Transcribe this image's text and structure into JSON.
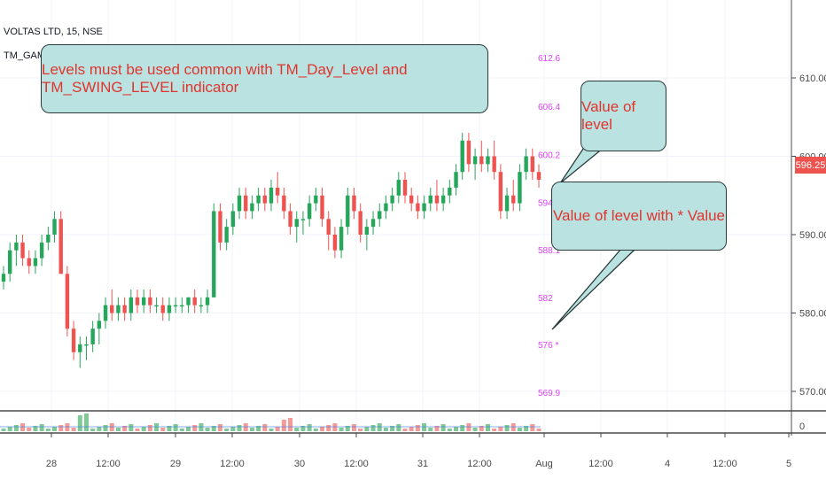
{
  "header": {
    "symbol": "VOLTAS LTD, 15, NSE",
    "indicator": "TM_GAME_LEVEL"
  },
  "callouts": {
    "main": "Levels must be used common with TM_Day_Level and TM_SWING_LEVEL indicator",
    "level": "Value of level",
    "level_star": "Value of level with * Value"
  },
  "current_price": "596.25",
  "colors": {
    "up": "#26a65b",
    "down": "#ef5350",
    "level_label": "#e040fb",
    "callout_bg": "#b9e2e0",
    "callout_text": "#e0352f"
  },
  "chart_data": {
    "type": "candlestick",
    "symbol": "VOLTAS LTD",
    "interval": "15",
    "exchange": "NSE",
    "y_axis": {
      "ticks": [
        "610.00",
        "600.00",
        "590.00",
        "580.00",
        "570.00"
      ],
      "range": [
        566,
        616
      ]
    },
    "x_axis": {
      "ticks": [
        "28",
        "12:00",
        "29",
        "12:00",
        "30",
        "12:00",
        "31",
        "12:00",
        "Aug",
        "12:00",
        "4",
        "12:00",
        "5"
      ]
    },
    "level_labels": [
      "612.6",
      "606.4",
      "600.2",
      "594.1",
      "588.1",
      "582",
      "576 *",
      "569.9"
    ],
    "candles": [
      [
        584,
        586,
        583,
        585
      ],
      [
        585,
        589,
        584,
        588
      ],
      [
        588,
        590,
        586,
        589
      ],
      [
        589,
        590,
        586,
        587
      ],
      [
        587,
        588,
        585,
        586
      ],
      [
        586,
        588,
        585,
        587
      ],
      [
        587,
        590,
        586,
        589
      ],
      [
        589,
        591,
        588,
        590
      ],
      [
        590,
        593,
        589,
        592
      ],
      [
        592,
        593,
        585,
        585
      ],
      [
        585,
        586,
        577,
        578
      ],
      [
        578,
        579,
        574,
        575
      ],
      [
        575,
        577,
        573,
        576
      ],
      [
        576,
        577,
        574,
        576
      ],
      [
        576,
        579,
        575,
        578
      ],
      [
        578,
        580,
        576,
        579
      ],
      [
        579,
        582,
        578,
        581
      ],
      [
        581,
        583,
        579,
        580
      ],
      [
        580,
        582,
        579,
        581
      ],
      [
        581,
        582,
        579,
        580
      ],
      [
        580,
        583,
        579,
        582
      ],
      [
        582,
        583,
        580,
        581
      ],
      [
        581,
        583,
        580,
        582
      ],
      [
        582,
        583,
        580,
        581
      ],
      [
        581,
        582,
        580,
        581
      ],
      [
        581,
        582,
        579,
        580
      ],
      [
        580,
        582,
        579,
        581
      ],
      [
        581,
        582,
        580,
        581
      ],
      [
        581,
        582,
        580,
        581
      ],
      [
        581,
        582,
        580,
        582
      ],
      [
        582,
        583,
        580,
        581
      ],
      [
        581,
        582,
        580,
        581
      ],
      [
        581,
        583,
        580,
        582
      ],
      [
        582,
        594,
        582,
        593
      ],
      [
        593,
        594,
        588,
        589
      ],
      [
        589,
        592,
        588,
        591
      ],
      [
        591,
        594,
        590,
        593
      ],
      [
        593,
        596,
        592,
        595
      ],
      [
        595,
        596,
        592,
        593
      ],
      [
        593,
        595,
        592,
        594
      ],
      [
        594,
        596,
        593,
        595
      ],
      [
        595,
        596,
        593,
        594
      ],
      [
        594,
        597,
        593,
        596
      ],
      [
        596,
        598,
        594,
        595
      ],
      [
        595,
        596,
        592,
        593
      ],
      [
        593,
        594,
        590,
        591
      ],
      [
        591,
        593,
        589,
        592
      ],
      [
        592,
        593,
        590,
        592
      ],
      [
        592,
        595,
        591,
        594
      ],
      [
        594,
        596,
        593,
        595
      ],
      [
        595,
        596,
        591,
        592
      ],
      [
        592,
        593,
        588,
        590
      ],
      [
        590,
        591,
        587,
        588
      ],
      [
        588,
        592,
        587,
        591
      ],
      [
        591,
        596,
        590,
        595
      ],
      [
        595,
        596,
        592,
        593
      ],
      [
        593,
        594,
        589,
        590
      ],
      [
        590,
        592,
        588,
        591
      ],
      [
        591,
        593,
        590,
        592
      ],
      [
        592,
        594,
        591,
        593
      ],
      [
        593,
        595,
        592,
        594
      ],
      [
        594,
        596,
        593,
        595
      ],
      [
        595,
        598,
        594,
        597
      ],
      [
        597,
        598,
        594,
        595
      ],
      [
        595,
        596,
        593,
        594
      ],
      [
        594,
        595,
        592,
        593
      ],
      [
        593,
        595,
        592,
        594
      ],
      [
        594,
        596,
        593,
        595
      ],
      [
        595,
        597,
        593,
        594
      ],
      [
        594,
        596,
        593,
        595
      ],
      [
        595,
        597,
        594,
        596
      ],
      [
        596,
        599,
        595,
        598
      ],
      [
        598,
        603,
        597,
        602
      ],
      [
        602,
        603,
        598,
        599
      ],
      [
        599,
        601,
        597,
        600
      ],
      [
        600,
        602,
        598,
        599
      ],
      [
        599,
        601,
        598,
        600
      ],
      [
        600,
        602,
        597,
        598
      ],
      [
        598,
        599,
        592,
        593
      ],
      [
        593,
        596,
        592,
        595
      ],
      [
        595,
        597,
        593,
        594
      ],
      [
        594,
        599,
        593,
        598
      ],
      [
        598,
        601,
        597,
        600
      ],
      [
        600,
        601,
        597,
        598
      ],
      [
        598,
        599,
        596,
        597
      ]
    ]
  }
}
